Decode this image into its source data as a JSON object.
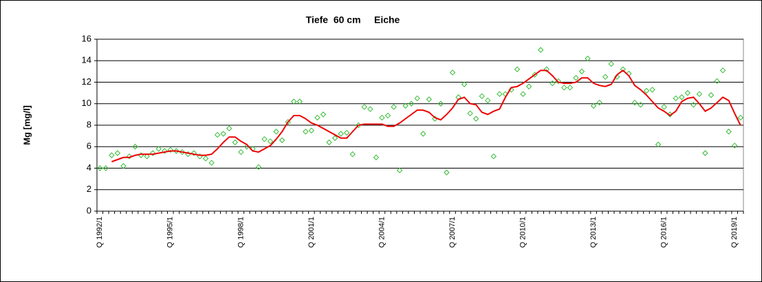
{
  "chart_data": {
    "type": "line",
    "title": "Tiefe  60 cm     Eiche",
    "y_label": "Mg [mg/l]",
    "categories": [
      "Q 1992/1",
      null,
      null,
      null,
      null,
      null,
      null,
      null,
      null,
      null,
      null,
      null,
      "Q 1995/1",
      null,
      null,
      null,
      null,
      null,
      null,
      null,
      null,
      null,
      null,
      null,
      "Q 1998/1",
      null,
      null,
      null,
      null,
      null,
      null,
      null,
      null,
      null,
      null,
      null,
      "Q 2001/1",
      null,
      null,
      null,
      null,
      null,
      null,
      null,
      null,
      null,
      null,
      null,
      "Q 2004/1",
      null,
      null,
      null,
      null,
      null,
      null,
      null,
      null,
      null,
      null,
      null,
      "Q 2007/1",
      null,
      null,
      null,
      null,
      null,
      null,
      null,
      null,
      null,
      null,
      null,
      "Q 2010/1",
      null,
      null,
      null,
      null,
      null,
      null,
      null,
      null,
      null,
      null,
      null,
      "Q 2013/1",
      null,
      null,
      null,
      null,
      null,
      null,
      null,
      null,
      null,
      null,
      null,
      "Q 2016/1",
      null,
      null,
      null,
      null,
      null,
      null,
      null,
      null,
      null,
      null,
      null,
      "Q 2019/1",
      null
    ],
    "series": [
      {
        "style": "markers",
        "color": "#33bb33",
        "values": [
          4.0,
          4.0,
          5.2,
          5.4,
          4.2,
          5.1,
          6.0,
          5.2,
          5.1,
          5.4,
          5.8,
          5.6,
          5.7,
          5.6,
          5.5,
          5.3,
          5.4,
          5.1,
          4.9,
          4.5,
          7.1,
          7.2,
          7.7,
          6.4,
          5.5,
          6.0,
          5.8,
          4.1,
          6.7,
          6.5,
          7.4,
          6.6,
          8.3,
          10.2,
          10.2,
          7.4,
          7.5,
          8.7,
          9.0,
          6.4,
          6.8,
          7.2,
          7.3,
          5.3,
          8.0,
          9.7,
          9.5,
          5.0,
          8.7,
          8.9,
          9.7,
          3.8,
          9.8,
          10.0,
          10.5,
          7.2,
          10.4,
          8.6,
          10.0,
          3.6,
          12.9,
          10.6,
          11.8,
          9.1,
          8.6,
          10.7,
          10.3,
          5.1,
          10.9,
          10.9,
          11.3,
          13.2,
          10.9,
          11.6,
          12.7,
          15.0,
          13.2,
          11.9,
          12.1,
          11.5,
          11.5,
          12.4,
          13.0,
          14.2,
          9.8,
          10.1,
          12.5,
          13.7,
          12.5,
          13.2,
          12.8,
          10.1,
          9.9,
          11.2,
          11.3,
          6.2,
          9.7,
          9.0,
          10.5,
          10.6,
          11.0,
          9.9,
          10.9,
          5.4,
          10.8,
          12.1,
          13.1,
          7.4,
          6.1,
          8.7
        ]
      },
      {
        "style": "line",
        "color": "#ee0000",
        "values": [
          null,
          null,
          4.6,
          4.8,
          5.0,
          5.0,
          5.2,
          5.3,
          5.3,
          5.3,
          5.4,
          5.5,
          5.6,
          5.6,
          5.5,
          5.4,
          5.3,
          5.2,
          5.2,
          5.3,
          5.8,
          6.4,
          6.9,
          6.9,
          6.5,
          6.2,
          5.6,
          5.5,
          5.8,
          6.1,
          6.7,
          7.4,
          8.3,
          8.9,
          8.9,
          8.6,
          8.2,
          8.0,
          7.7,
          7.4,
          7.1,
          6.8,
          6.8,
          7.4,
          8.0,
          8.1,
          8.1,
          8.1,
          8.1,
          7.9,
          7.9,
          8.2,
          8.6,
          9.0,
          9.4,
          9.4,
          9.2,
          8.7,
          8.5,
          9.0,
          9.6,
          10.4,
          10.6,
          10.0,
          9.9,
          9.2,
          9.0,
          9.3,
          9.5,
          10.6,
          11.5,
          11.6,
          11.9,
          12.3,
          12.7,
          13.1,
          13.1,
          12.6,
          12.0,
          11.9,
          11.9,
          12.0,
          12.4,
          12.4,
          11.9,
          11.7,
          11.6,
          11.8,
          12.7,
          13.1,
          12.6,
          11.7,
          11.3,
          10.8,
          10.2,
          9.6,
          9.3,
          8.9,
          9.3,
          10.2,
          10.5,
          10.6,
          10.0,
          9.3,
          9.6,
          10.1,
          10.6,
          10.3,
          9.1,
          8.0
        ]
      }
    ],
    "ylim": [
      0,
      16
    ],
    "yticks": [
      0,
      2,
      4,
      6,
      8,
      10,
      12,
      14,
      16
    ],
    "grid": true
  }
}
